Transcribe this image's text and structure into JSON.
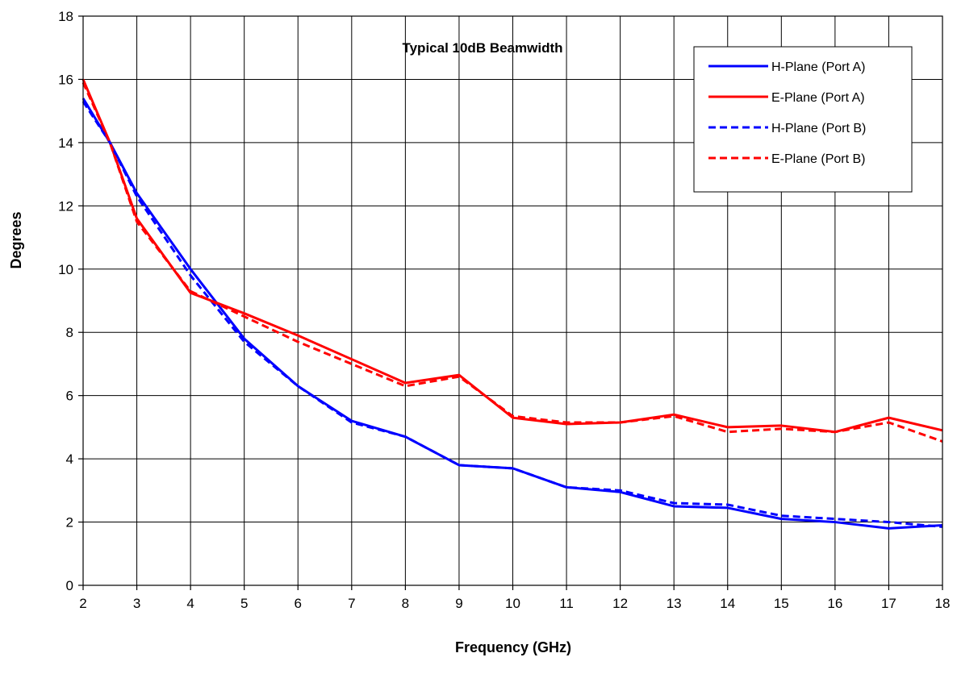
{
  "chart_data": {
    "type": "line",
    "title": "Typical 10dB Beamwidth",
    "xlabel": "Frequency  (GHz)",
    "ylabel": "Degrees",
    "xlim": [
      2,
      18
    ],
    "ylim": [
      0,
      18
    ],
    "xticks": [
      2,
      3,
      4,
      5,
      6,
      7,
      8,
      9,
      10,
      11,
      12,
      13,
      14,
      15,
      16,
      17,
      18
    ],
    "yticks": [
      0,
      2,
      4,
      6,
      8,
      10,
      12,
      14,
      16,
      18
    ],
    "grid": true,
    "legend_position": "top-right",
    "series": [
      {
        "name": "H-Plane (Port A)",
        "color": "#0000ff",
        "dash": "solid",
        "x": [
          2,
          2.5,
          3,
          4,
          5,
          6,
          7,
          8,
          9,
          10,
          11,
          12,
          13,
          14,
          15,
          16,
          17,
          18
        ],
        "y": [
          15.4,
          14.0,
          12.4,
          10.0,
          7.8,
          6.3,
          5.2,
          4.7,
          3.8,
          3.7,
          3.1,
          2.95,
          2.5,
          2.45,
          2.1,
          2.0,
          1.8,
          1.9
        ]
      },
      {
        "name": "E-Plane (Port A)",
        "color": "#ff0000",
        "dash": "solid",
        "x": [
          2,
          2.5,
          3,
          4,
          5,
          6,
          7,
          8,
          9,
          10,
          11,
          12,
          13,
          14,
          15,
          16,
          17,
          18
        ],
        "y": [
          16.0,
          14.0,
          11.6,
          9.25,
          8.6,
          7.9,
          7.15,
          6.4,
          6.65,
          5.3,
          5.1,
          5.15,
          5.4,
          5.0,
          5.05,
          4.85,
          5.3,
          4.9
        ]
      },
      {
        "name": "H-Plane (Port B)",
        "color": "#0000ff",
        "dash": "dashed",
        "x": [
          2,
          2.5,
          3,
          4,
          5,
          6,
          7,
          8,
          9,
          10,
          11,
          12,
          13,
          14,
          15,
          16,
          17,
          18
        ],
        "y": [
          15.3,
          14.0,
          12.3,
          9.8,
          7.7,
          6.3,
          5.15,
          4.7,
          3.8,
          3.7,
          3.1,
          3.0,
          2.6,
          2.55,
          2.2,
          2.1,
          2.0,
          1.85
        ]
      },
      {
        "name": "E-Plane (Port B)",
        "color": "#ff0000",
        "dash": "dashed",
        "x": [
          2,
          2.5,
          3,
          4,
          5,
          6,
          7,
          8,
          9,
          10,
          11,
          12,
          13,
          14,
          15,
          16,
          17,
          18
        ],
        "y": [
          15.9,
          14.0,
          11.5,
          9.3,
          8.5,
          7.7,
          7.0,
          6.3,
          6.6,
          5.35,
          5.15,
          5.15,
          5.35,
          4.85,
          4.95,
          4.85,
          5.15,
          4.55
        ]
      }
    ]
  }
}
